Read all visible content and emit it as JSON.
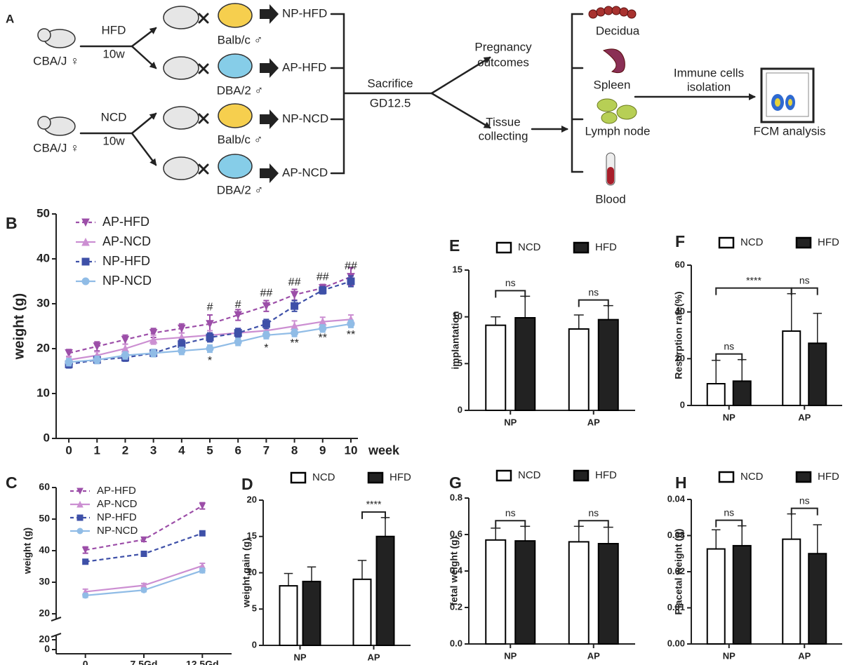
{
  "diagram": {
    "panel": "A",
    "cba_top": "CBA/J ♀",
    "cba_bottom": "CBA/J ♀",
    "hfd": "HFD",
    "hfd_duration": "10w",
    "ncd": "NCD",
    "ncd_duration": "10w",
    "males": [
      "Balb/c ♂",
      "DBA/2 ♂",
      "Balb/c ♂",
      "DBA/2 ♂"
    ],
    "groups": [
      "NP-HFD",
      "AP-HFD",
      "NP-NCD",
      "AP-NCD"
    ],
    "sacrifice": "Sacrifice",
    "gd": "GD12.5",
    "pregnancy": [
      "Pregnancy",
      "outcomes"
    ],
    "tissue": [
      "Tissue",
      "collecting"
    ],
    "tissues": [
      "Decidua",
      "Spleen",
      "Lymph node",
      "Blood"
    ],
    "isolation": [
      "Immune cells",
      "isolation"
    ],
    "fcm": "FCM analysis"
  },
  "chart_data": [
    {
      "panel": "B",
      "type": "line",
      "xlabel": "week",
      "ylabel": "weight (g)",
      "x": [
        0,
        1,
        2,
        3,
        4,
        5,
        6,
        7,
        8,
        9,
        10
      ],
      "xlim": [
        -0.45,
        10.25
      ],
      "xticks": [
        0,
        1,
        2,
        3,
        4,
        5,
        6,
        7,
        8,
        9,
        10
      ],
      "ylim": [
        0,
        50
      ],
      "yticks": [
        0,
        10,
        20,
        30,
        40,
        50
      ],
      "series": [
        {
          "name": "AP-HFD",
          "color": "#9c4ea8",
          "dashed": true,
          "marker": "triangle-down",
          "values": [
            19,
            20.5,
            22,
            23.5,
            24.5,
            25.5,
            27.5,
            29.5,
            32,
            33.5,
            36
          ],
          "errors": [
            0.8,
            1,
            1,
            1,
            1,
            2,
            1.2,
            1.2,
            1.2,
            0.8,
            2
          ]
        },
        {
          "name": "AP-NCD",
          "color": "#cc8fd2",
          "dashed": false,
          "marker": "triangle-up",
          "values": [
            17.5,
            18.5,
            20,
            22,
            22.5,
            23,
            23.5,
            24,
            25,
            26,
            26.5
          ],
          "errors": [
            0.8,
            0.8,
            1,
            1,
            1,
            1,
            1,
            1,
            1.2,
            1,
            1
          ]
        },
        {
          "name": "NP-HFD",
          "color": "#3e50a8",
          "dashed": true,
          "marker": "square",
          "values": [
            16.5,
            17.5,
            18,
            19,
            21,
            22.5,
            23.5,
            25.5,
            29.5,
            33,
            35
          ],
          "errors": [
            0.8,
            0.8,
            0.8,
            0.8,
            1,
            1,
            1,
            1,
            1.2,
            0.8,
            1.2
          ]
        },
        {
          "name": "NP-NCD",
          "color": "#90bce6",
          "dashed": false,
          "marker": "circle",
          "values": [
            17,
            17.5,
            18.5,
            19,
            19.5,
            20,
            21.5,
            23,
            23.5,
            24.5,
            25.5
          ],
          "errors": [
            0.8,
            0.8,
            0.8,
            0.8,
            0.8,
            0.8,
            0.8,
            0.8,
            0.8,
            0.8,
            0.8
          ]
        }
      ],
      "annotations": [
        {
          "text": "#",
          "x": 5,
          "y": 29.2
        },
        {
          "text": "#",
          "x": 6,
          "y": 29.7
        },
        {
          "text": "##",
          "x": 7,
          "y": 32.3
        },
        {
          "text": "##",
          "x": 8,
          "y": 34.7
        },
        {
          "text": "##",
          "x": 9,
          "y": 35.9
        },
        {
          "text": "##",
          "x": 10,
          "y": 38.3
        },
        {
          "text": "*",
          "x": 5,
          "y": 17.2
        },
        {
          "text": "*",
          "x": 7,
          "y": 20
        },
        {
          "text": "**",
          "x": 8,
          "y": 21.1
        },
        {
          "text": "**",
          "x": 9,
          "y": 22.3
        },
        {
          "text": "**",
          "x": 10,
          "y": 23
        }
      ]
    },
    {
      "panel": "C",
      "type": "line",
      "ylabel": "weight (g)",
      "categories": [
        "0",
        "7.5Gd",
        "12.5Gd"
      ],
      "ylim": [
        20,
        60
      ],
      "yticks": [
        20,
        30,
        40,
        50,
        60
      ],
      "break_yticks": [
        0,
        20
      ],
      "series": [
        {
          "name": "AP-HFD",
          "color": "#9c4ea8",
          "dashed": true,
          "marker": "triangle-down",
          "values": [
            40.2,
            43.5,
            54.2
          ],
          "errors": [
            1,
            0.6,
            1
          ]
        },
        {
          "name": "AP-NCD",
          "color": "#cc8fd2",
          "dashed": false,
          "marker": "triangle-up",
          "values": [
            27,
            29,
            35.2
          ],
          "errors": [
            0.8,
            0.6,
            0.8
          ]
        },
        {
          "name": "NP-HFD",
          "color": "#3e50a8",
          "dashed": true,
          "marker": "square",
          "values": [
            36.5,
            39,
            45.5
          ],
          "errors": [
            0.6,
            0.5,
            0.5
          ]
        },
        {
          "name": "NP-NCD",
          "color": "#90bce6",
          "dashed": false,
          "marker": "circle",
          "values": [
            25.8,
            27.5,
            33.7
          ],
          "errors": [
            0.6,
            0.5,
            0.7
          ]
        }
      ]
    },
    {
      "panel": "D",
      "type": "bar",
      "ylabel": "weight gain (g)",
      "categories": [
        "NP",
        "AP"
      ],
      "ylim": [
        0,
        20
      ],
      "yticks": [
        0,
        5,
        10,
        15,
        20
      ],
      "edgecolor": "#000000",
      "series": [
        {
          "name": "NCD",
          "color": "#ffffff",
          "values": [
            8.2,
            9.1
          ],
          "errors": [
            1.7,
            2.6
          ]
        },
        {
          "name": "HFD",
          "color": "#222222",
          "values": [
            8.8,
            15
          ],
          "errors": [
            2,
            2.6
          ]
        }
      ],
      "brackets": [
        {
          "label": "****",
          "left": [
            1,
            0
          ],
          "right": [
            1,
            1
          ]
        }
      ]
    },
    {
      "panel": "E",
      "type": "bar",
      "ylabel": "implantation",
      "categories": [
        "NP",
        "AP"
      ],
      "ylim": [
        0,
        15
      ],
      "yticks": [
        0,
        5,
        10,
        15
      ],
      "edgecolor": "#000000",
      "series": [
        {
          "name": "NCD",
          "color": "#ffffff",
          "values": [
            9.1,
            8.7
          ],
          "errors": [
            0.9,
            1.5
          ]
        },
        {
          "name": "HFD",
          "color": "#222222",
          "values": [
            9.9,
            9.7
          ],
          "errors": [
            2.3,
            1.5
          ]
        }
      ],
      "brackets": [
        {
          "label": "ns",
          "left": [
            0,
            0
          ],
          "right": [
            0,
            1
          ]
        },
        {
          "label": "ns",
          "left": [
            1,
            0
          ],
          "right": [
            1,
            1
          ]
        }
      ]
    },
    {
      "panel": "F",
      "type": "bar",
      "ylabel": "Resorption rate(%)",
      "categories": [
        "NP",
        "AP"
      ],
      "ylim": [
        0,
        60
      ],
      "yticks": [
        0,
        20,
        40,
        60
      ],
      "edgecolor": "#000000",
      "series": [
        {
          "name": "NCD",
          "color": "#ffffff",
          "values": [
            9.3,
            31.8
          ],
          "errors": [
            10,
            16
          ]
        },
        {
          "name": "HFD",
          "color": "#222222",
          "values": [
            10.4,
            26.6
          ],
          "errors": [
            9.2,
            12.8
          ]
        }
      ],
      "brackets": [
        {
          "label": "ns",
          "left": [
            0,
            0
          ],
          "right": [
            0,
            1
          ]
        },
        {
          "label": "ns",
          "left": [
            1,
            0
          ],
          "right": [
            1,
            1
          ]
        },
        {
          "label": "****",
          "left": [
            0,
            0
          ],
          "right": [
            1,
            0
          ]
        }
      ]
    },
    {
      "panel": "G",
      "type": "bar",
      "ylabel": "fetal weight (g)",
      "categories": [
        "NP",
        "AP"
      ],
      "ylim": [
        0,
        0.8
      ],
      "yticks": [
        {
          "value": 0,
          "label": "0.0"
        },
        0.2,
        0.4,
        0.6,
        0.8
      ],
      "edgecolor": "#000000",
      "series": [
        {
          "name": "NCD",
          "color": "#ffffff",
          "values": [
            0.57,
            0.56
          ],
          "errors": [
            0.065,
            0.085
          ]
        },
        {
          "name": "HFD",
          "color": "#222222",
          "values": [
            0.565,
            0.55
          ],
          "errors": [
            0.08,
            0.09
          ]
        }
      ],
      "brackets": [
        {
          "label": "ns",
          "left": [
            0,
            0
          ],
          "right": [
            0,
            1
          ]
        },
        {
          "label": "ns",
          "left": [
            1,
            0
          ],
          "right": [
            1,
            1
          ]
        }
      ]
    },
    {
      "panel": "H",
      "type": "bar",
      "ylabel": "Placetal weight (g)",
      "categories": [
        "NP",
        "AP"
      ],
      "ylim": [
        0,
        0.04
      ],
      "yticks": [
        {
          "value": 0,
          "label": "0.00"
        },
        {
          "value": 0.01,
          "label": "0.01"
        },
        {
          "value": 0.02,
          "label": "0.02"
        },
        {
          "value": 0.03,
          "label": "0.03"
        },
        {
          "value": 0.04,
          "label": "0.04"
        }
      ],
      "edgecolor": "#000000",
      "series": [
        {
          "name": "NCD",
          "color": "#ffffff",
          "values": [
            0.0263,
            0.029
          ],
          "errors": [
            0.0053,
            0.007
          ]
        },
        {
          "name": "HFD",
          "color": "#222222",
          "values": [
            0.0272,
            0.025
          ],
          "errors": [
            0.0055,
            0.008
          ]
        }
      ],
      "brackets": [
        {
          "label": "ns",
          "left": [
            0,
            0
          ],
          "right": [
            0,
            1
          ]
        },
        {
          "label": "ns",
          "left": [
            1,
            0
          ],
          "right": [
            1,
            1
          ]
        }
      ]
    }
  ]
}
